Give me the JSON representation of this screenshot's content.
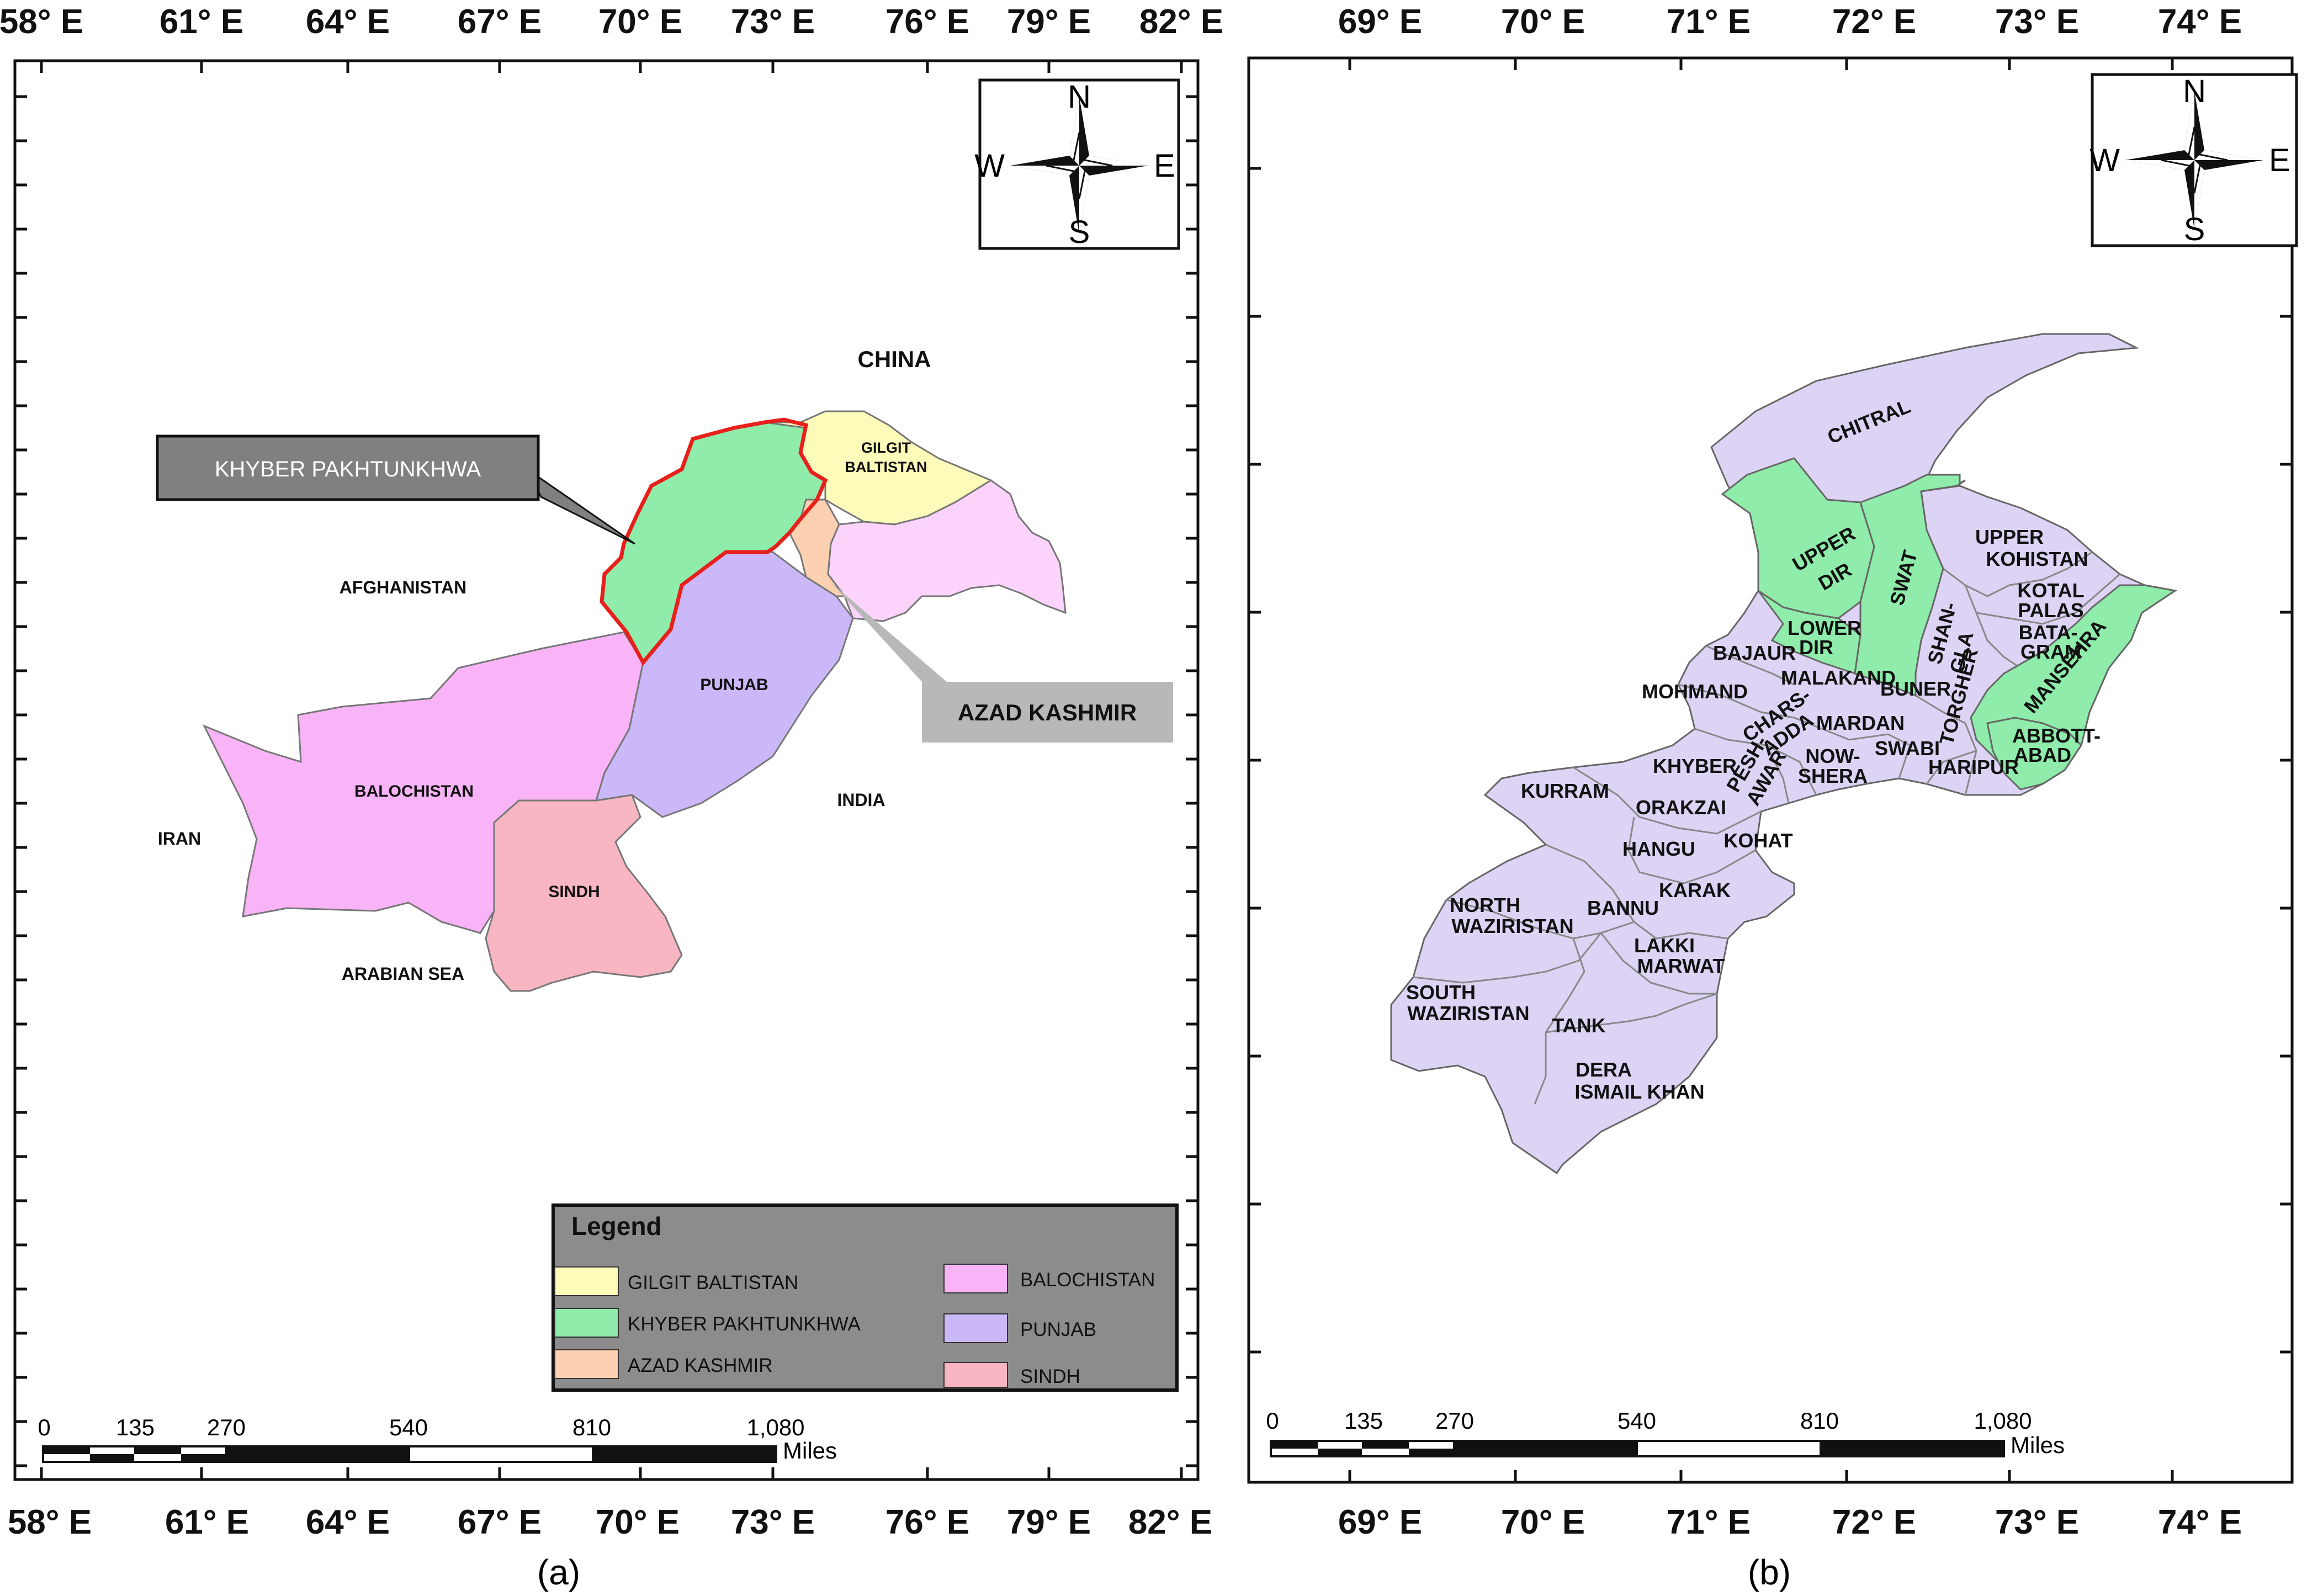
{
  "panel_a": {
    "caption": "(a)",
    "lon_labels": [
      "58° E",
      "61° E",
      "64° E",
      "67° E",
      "70° E",
      "73° E",
      "76° E",
      "79° E",
      "82° E"
    ],
    "compass": {
      "n": "N",
      "s": "S",
      "e": "E",
      "w": "W"
    },
    "countries": {
      "china": "CHINA",
      "afghanistan": "AFGHANISTAN",
      "iran": "IRAN",
      "india": "INDIA",
      "arabian_sea": "ARABIAN SEA"
    },
    "provinces": {
      "gilgit": [
        "GILGIT",
        "BALTISTAN"
      ],
      "punjab": "PUNJAB",
      "balochistan": "BALOCHISTAN",
      "sindh": "SINDH"
    },
    "callouts": {
      "kp": "KHYBER PAKHTUNKHWA",
      "ajk": "AZAD KASHMIR"
    },
    "legend": {
      "title": "Legend",
      "items": [
        {
          "label": "GILGIT BALTISTAN",
          "color": "#fdfbb9"
        },
        {
          "label": "KHYBER PAKHTUNKHWA",
          "color": "#8fecaa"
        },
        {
          "label": "AZAD KASHMIR",
          "color": "#fcd0b0"
        },
        {
          "label": "BALOCHISTAN",
          "color": "#f8b4f6"
        },
        {
          "label": "PUNJAB",
          "color": "#cbb8f8"
        },
        {
          "label": "SINDH",
          "color": "#f8b6c3"
        }
      ]
    },
    "scale": {
      "ticks": [
        "0",
        "135",
        "270",
        "540",
        "810",
        "1,080"
      ],
      "unit": "Miles"
    }
  },
  "panel_b": {
    "caption": "(b)",
    "lon_labels": [
      "69° E",
      "70° E",
      "71° E",
      "72° E",
      "73° E",
      "74° E"
    ],
    "compass": {
      "n": "N",
      "s": "S",
      "e": "E",
      "w": "W"
    },
    "districts": {
      "chitral": "CHITRAL",
      "upper_dir": [
        "UPPER",
        "DIR"
      ],
      "swat": "SWAT",
      "upper_kohistan": [
        "UPPER",
        "KOHISTAN"
      ],
      "kotal_palas": [
        "KOTAL",
        "PALAS"
      ],
      "lower_dir": [
        "LOWER",
        "DIR"
      ],
      "shangla": [
        "SHAN-",
        "GLA"
      ],
      "batagram": [
        "BATA-",
        "GRAM"
      ],
      "torghar": "TORGHER",
      "mansehra": "MANSEHRA",
      "bajaur": "BAJAUR",
      "malakand": "MALAKAND",
      "mohmand": "MOHMAND",
      "buner": "BUNER",
      "charsadda": [
        "CHARS-",
        "ADDA"
      ],
      "peshawar": [
        "PESH-",
        "AWAR"
      ],
      "mardan": "MARDAN",
      "abbottabad": [
        "ABBOTT-",
        "ABAD"
      ],
      "khyber": "KHYBER",
      "nowshera": [
        "NOW-",
        "SHERA"
      ],
      "swabi": "SWABI",
      "haripur": "HARIPUR",
      "kurram": "KURRAM",
      "orakzai": "ORAKZAI",
      "hangu": "HANGU",
      "kohat": "KOHAT",
      "karak": "KARAK",
      "north_waziristan": [
        "NORTH",
        "WAZIRISTAN"
      ],
      "bannu": "BANNU",
      "lakki_marwat": [
        "LAKKI",
        "MARWAT"
      ],
      "south_waziristan": [
        "SOUTH",
        "WAZIRISTAN"
      ],
      "tank": "TANK",
      "dera_ismail_khan": [
        "DERA",
        "ISMAIL KHAN"
      ]
    },
    "colors": {
      "district": "#ddd3f5",
      "highlight": "#8fecaa"
    },
    "scale": {
      "ticks": [
        "0",
        "135",
        "270",
        "540",
        "810",
        "1,080"
      ],
      "unit": "Miles"
    }
  }
}
